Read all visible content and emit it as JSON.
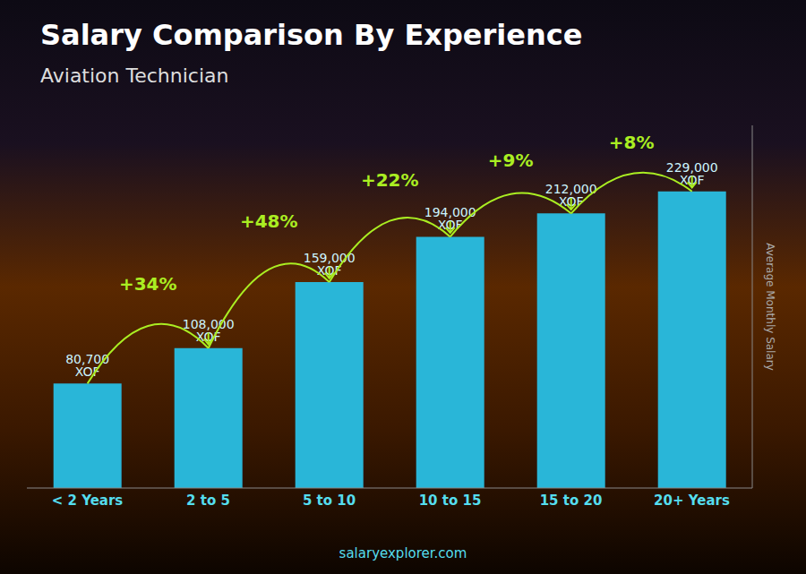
{
  "chart_data": {
    "type": "bar",
    "title": "Salary Comparison By Experience",
    "subtitle": "Aviation Technician",
    "y_label": "Average Monthly Salary",
    "categories": [
      "< 2 Years",
      "2 to 5",
      "5 to 10",
      "10 to 15",
      "15 to 20",
      "20+ Years"
    ],
    "values": [
      80700,
      108000,
      159000,
      194000,
      212000,
      229000
    ],
    "value_labels": [
      "80,700 XOF",
      "108,000 XOF",
      "159,000 XOF",
      "194,000 XOF",
      "212,000 XOF",
      "229,000 XOF"
    ],
    "data_labels": true,
    "annotations": [
      "+34%",
      "+48%",
      "+22%",
      "+9%",
      "+8%"
    ],
    "source": "salaryexplorer.com",
    "color": "#29b6d8",
    "ylim": [
      0,
      280000
    ],
    "tick_labels": "x",
    "grid": false
  }
}
